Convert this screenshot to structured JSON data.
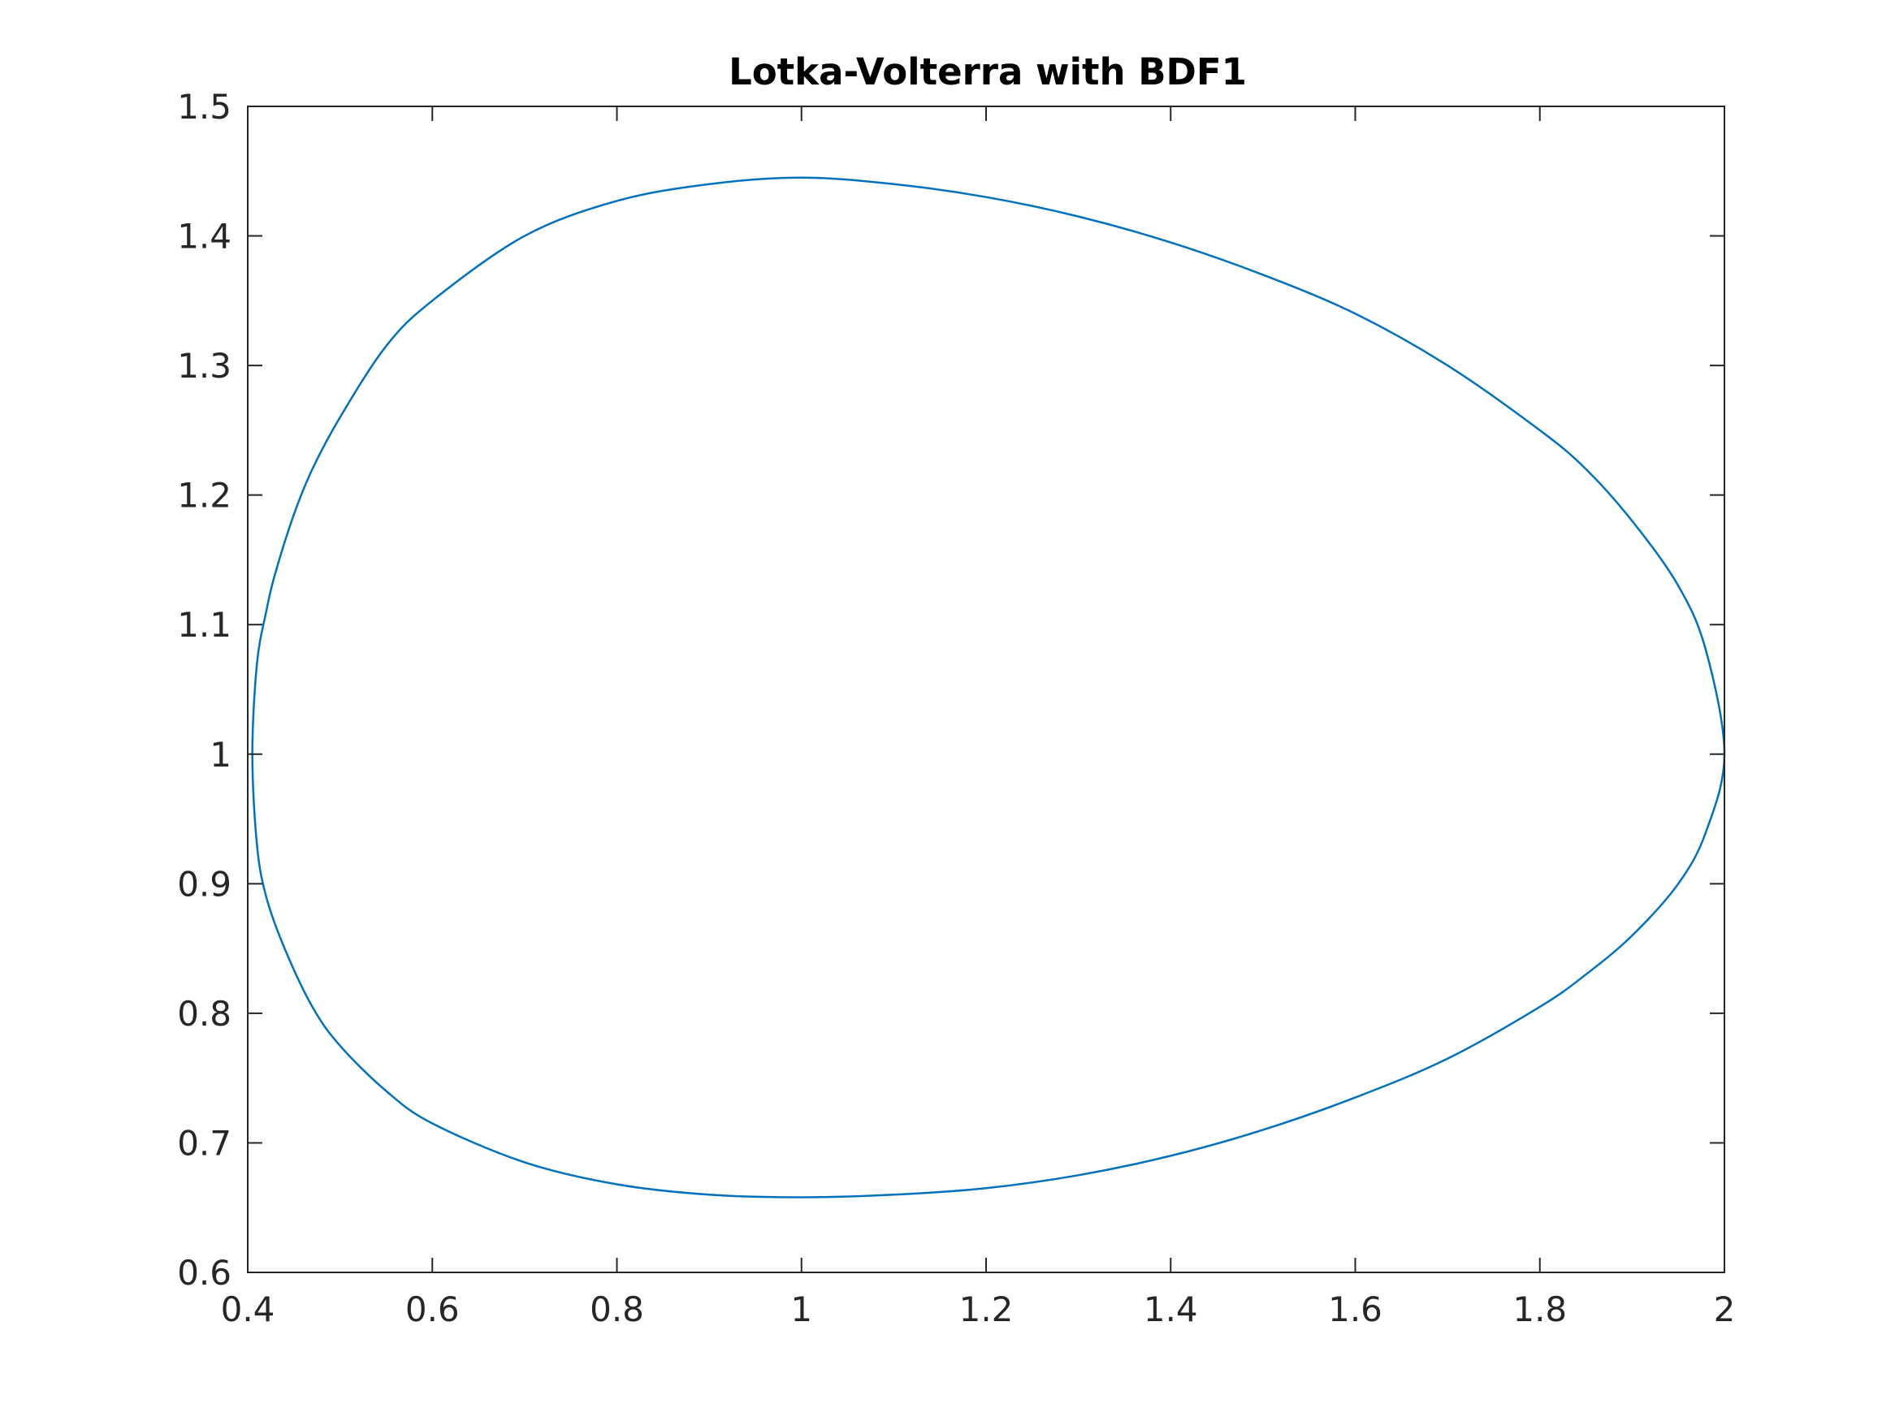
{
  "chart_data": {
    "type": "line",
    "title": "Lotka-Volterra with BDF1",
    "xlabel": "",
    "ylabel": "",
    "xlim": [
      0.4,
      2.0
    ],
    "ylim": [
      0.6,
      1.5
    ],
    "x_ticks": [
      0.4,
      0.6,
      0.8,
      1.0,
      1.2,
      1.4,
      1.6,
      1.8,
      2.0
    ],
    "x_tick_labels": [
      "0.4",
      "0.6",
      "0.8",
      "1",
      "1.2",
      "1.4",
      "1.6",
      "1.8",
      "2"
    ],
    "y_ticks": [
      0.6,
      0.7,
      0.8,
      0.9,
      1.0,
      1.1,
      1.2,
      1.3,
      1.4,
      1.5
    ],
    "y_tick_labels": [
      "0.6",
      "0.7",
      "0.8",
      "0.9",
      "1",
      "1.1",
      "1.2",
      "1.3",
      "1.4",
      "1.5"
    ],
    "grid": false,
    "box": true,
    "series": [
      {
        "color": "#0072BD",
        "x": [
          2.0,
          1.98,
          1.95,
          1.9,
          1.85,
          1.8,
          1.7,
          1.6,
          1.5,
          1.4,
          1.3,
          1.2,
          1.1,
          1.0,
          0.9,
          0.8,
          0.7,
          0.6,
          0.55,
          0.5,
          0.47,
          0.45,
          0.43,
          0.42,
          0.41,
          0.405,
          0.41,
          0.42,
          0.44,
          0.47,
          0.5,
          0.55,
          0.6,
          0.7,
          0.8,
          0.9,
          1.0,
          1.1,
          1.2,
          1.3,
          1.4,
          1.5,
          1.6,
          1.7,
          1.8,
          1.85,
          1.9,
          1.95,
          1.98,
          2.0
        ],
        "y": [
          1.0,
          1.08,
          1.13,
          1.18,
          1.22,
          1.25,
          1.3,
          1.34,
          1.37,
          1.395,
          1.415,
          1.43,
          1.44,
          1.445,
          1.44,
          1.427,
          1.4,
          1.35,
          1.315,
          1.26,
          1.22,
          1.185,
          1.14,
          1.11,
          1.07,
          1.0,
          0.93,
          0.89,
          0.85,
          0.805,
          0.775,
          0.74,
          0.715,
          0.685,
          0.668,
          0.66,
          0.658,
          0.66,
          0.665,
          0.675,
          0.69,
          0.71,
          0.735,
          0.765,
          0.805,
          0.83,
          0.86,
          0.9,
          0.94,
          1.0
        ]
      }
    ]
  }
}
